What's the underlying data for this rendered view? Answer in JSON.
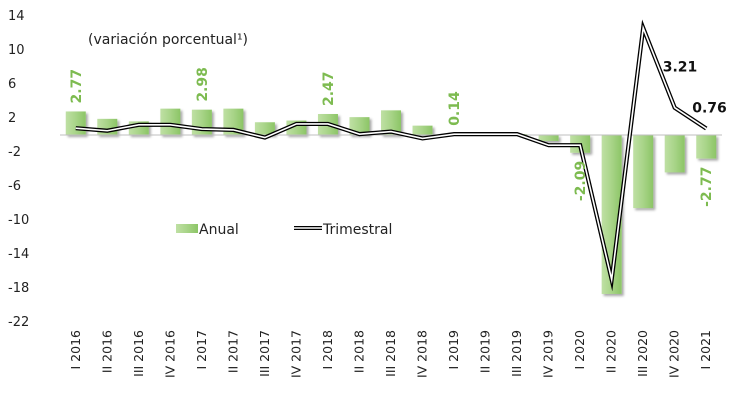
{
  "chart_data": {
    "type": "bar",
    "title": "",
    "subtitle": "(variación porcentual¹)",
    "xlabel": "",
    "ylabel": "",
    "ylim": [
      -22,
      14
    ],
    "yticks": [
      14,
      10,
      6,
      2,
      -2,
      -6,
      -10,
      -14,
      -18,
      -22
    ],
    "categories": [
      "I 2016",
      "II 2016",
      "III 2016",
      "IV 2016",
      "I 2017",
      "II 2017",
      "III 2017",
      "IV 2017",
      "I 2018",
      "II 2018",
      "III 2018",
      "IV 2018",
      "I 2019",
      "II 2019",
      "III 2019",
      "IV 2019",
      "I 2020",
      "II 2020",
      "III 2020",
      "IV 2020",
      "I 2021"
    ],
    "legend_position": "middle-left",
    "series": [
      {
        "name": "Anual",
        "kind": "bar",
        "color": "#9fd17a",
        "values": [
          2.77,
          1.9,
          1.6,
          3.1,
          2.98,
          3.1,
          1.5,
          1.7,
          2.47,
          2.1,
          2.9,
          1.1,
          0.14,
          0.1,
          0.1,
          -0.7,
          -2.09,
          -18.7,
          -8.6,
          -4.4,
          -2.77
        ],
        "labels": [
          {
            "index": 0,
            "text": "2.77"
          },
          {
            "index": 4,
            "text": "2.98"
          },
          {
            "index": 8,
            "text": "2.47"
          },
          {
            "index": 12,
            "text": "0.14"
          },
          {
            "index": 16,
            "text": "-2.09"
          },
          {
            "index": 20,
            "text": "-2.77"
          }
        ]
      },
      {
        "name": "Trimestral",
        "kind": "line",
        "color": "#000000",
        "values": [
          0.8,
          0.5,
          1.2,
          1.2,
          0.7,
          0.6,
          -0.3,
          1.3,
          1.3,
          0.1,
          0.4,
          -0.4,
          0.1,
          0.1,
          0.1,
          -1.2,
          -1.2,
          -17.0,
          12.6,
          3.21,
          0.76
        ],
        "labels": [
          {
            "index": 19,
            "text": "3.21"
          },
          {
            "index": 20,
            "text": "0.76"
          }
        ]
      }
    ]
  }
}
